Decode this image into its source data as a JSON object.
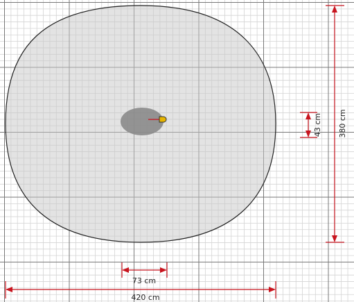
{
  "dimensions": {
    "width": {
      "label": "420 cm"
    },
    "height": {
      "label": "380 cm"
    },
    "inner_width": {
      "label": "73 cm"
    },
    "inner_height": {
      "label": "43 cm"
    }
  }
}
